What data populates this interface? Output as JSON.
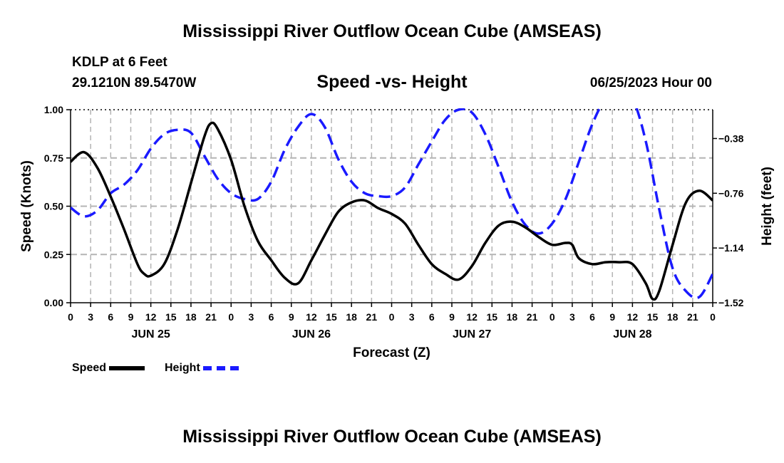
{
  "header": {
    "title": "Mississippi River Outflow Ocean Cube (AMSEAS)",
    "station": "KDLP at 6 Feet",
    "coords": "29.1210N  89.5470W",
    "subtitle": "Speed -vs- Height",
    "datetime": "06/25/2023 Hour 00"
  },
  "footer": {
    "title": "Mississippi River Outflow Ocean Cube (AMSEAS)"
  },
  "legend": {
    "speed_label": "Speed",
    "height_label": "Height"
  },
  "colors": {
    "speed": "#000000",
    "height": "#1a1aff",
    "grid": "#b4b4b4"
  },
  "chart_data": {
    "type": "line",
    "xlabel": "Forecast (Z)",
    "ylabel": "Speed (Knots)",
    "y2label": "Height (feet)",
    "ylim": [
      0,
      1
    ],
    "y2lim": [
      -1.52,
      -0.18
    ],
    "yticks": [
      "0.00",
      "0.25",
      "0.50",
      "0.75",
      "1.00"
    ],
    "yticks_values": [
      0,
      0.25,
      0.5,
      0.75,
      1.0
    ],
    "y2ticks": [
      "−1.52",
      "−1.14",
      "−0.76",
      "−0.38"
    ],
    "y2ticks_values": [
      -1.52,
      -1.14,
      -0.76,
      -0.38
    ],
    "xlim": [
      0,
      96
    ],
    "xtick_labels": [
      "0",
      "3",
      "6",
      "9",
      "12",
      "15",
      "18",
      "21",
      "0",
      "3",
      "6",
      "9",
      "12",
      "15",
      "18",
      "21",
      "0",
      "3",
      "6",
      "9",
      "12",
      "15",
      "18",
      "21",
      "0",
      "3",
      "6",
      "9",
      "12",
      "15",
      "18",
      "21",
      "0"
    ],
    "day_labels": [
      {
        "label": "JUN 25",
        "hour": 12
      },
      {
        "label": "JUN 26",
        "hour": 36
      },
      {
        "label": "JUN 27",
        "hour": 60
      },
      {
        "label": "JUN 28",
        "hour": 84
      }
    ],
    "grid": true,
    "series": [
      {
        "name": "Speed",
        "axis": "left",
        "x": [
          0,
          2,
          4,
          6,
          8,
          10,
          11,
          12,
          14,
          16,
          18,
          20,
          21,
          22,
          24,
          26,
          28,
          30,
          32,
          34,
          36,
          38,
          40,
          42,
          44,
          46,
          48,
          50,
          52,
          54,
          56,
          58,
          60,
          62,
          64,
          66,
          68,
          70,
          72,
          74,
          75,
          76,
          78,
          80,
          82,
          84,
          86,
          87,
          88,
          90,
          92,
          94,
          96
        ],
        "values": [
          0.73,
          0.78,
          0.7,
          0.55,
          0.38,
          0.2,
          0.15,
          0.14,
          0.2,
          0.38,
          0.62,
          0.86,
          0.93,
          0.9,
          0.74,
          0.5,
          0.32,
          0.22,
          0.13,
          0.1,
          0.22,
          0.35,
          0.47,
          0.52,
          0.53,
          0.49,
          0.46,
          0.41,
          0.3,
          0.2,
          0.15,
          0.12,
          0.19,
          0.31,
          0.4,
          0.42,
          0.39,
          0.34,
          0.3,
          0.31,
          0.3,
          0.23,
          0.2,
          0.21,
          0.21,
          0.2,
          0.1,
          0.02,
          0.06,
          0.3,
          0.52,
          0.58,
          0.53
        ]
      },
      {
        "name": "Height",
        "axis": "right",
        "x": [
          0,
          2,
          4,
          6,
          8,
          10,
          12,
          14,
          16,
          18,
          20,
          22,
          24,
          26,
          28,
          30,
          32,
          34,
          36,
          38,
          40,
          42,
          44,
          46,
          48,
          50,
          52,
          54,
          56,
          58,
          60,
          62,
          64,
          66,
          68,
          70,
          72,
          74,
          76,
          78,
          80,
          82,
          84,
          86,
          88,
          90,
          92,
          94,
          96
        ],
        "values": [
          -0.86,
          -0.92,
          -0.88,
          -0.76,
          -0.7,
          -0.6,
          -0.45,
          -0.35,
          -0.32,
          -0.34,
          -0.5,
          -0.66,
          -0.76,
          -0.8,
          -0.8,
          -0.68,
          -0.46,
          -0.3,
          -0.21,
          -0.3,
          -0.52,
          -0.68,
          -0.76,
          -0.78,
          -0.78,
          -0.72,
          -0.56,
          -0.4,
          -0.25,
          -0.18,
          -0.2,
          -0.35,
          -0.58,
          -0.82,
          -0.98,
          -1.04,
          -0.97,
          -0.8,
          -0.54,
          -0.28,
          -0.1,
          -0.04,
          -0.1,
          -0.4,
          -0.87,
          -1.28,
          -1.44,
          -1.48,
          -1.32
        ]
      }
    ]
  }
}
